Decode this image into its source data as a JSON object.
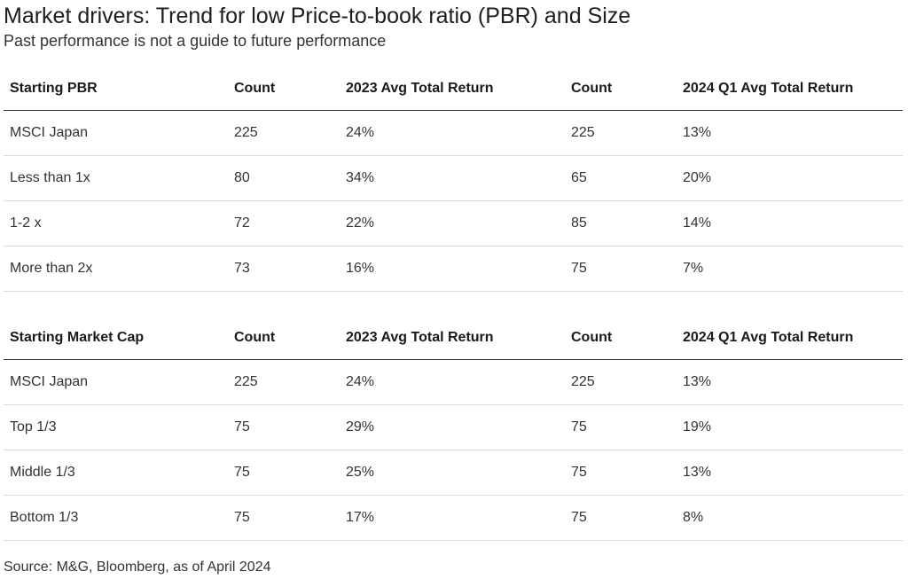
{
  "title": "Market drivers: Trend for low Price-to-book ratio (PBR) and Size",
  "subtitle": "Past performance is not a guide to future performance",
  "source": "Source: M&G, Bloomberg, as of April 2024",
  "chart_data": [
    {
      "type": "table",
      "columns": [
        "Starting PBR",
        "Count",
        "2023 Avg Total Return",
        "Count",
        "2024 Q1 Avg Total Return"
      ],
      "rows": [
        [
          "MSCI Japan",
          "225",
          "24%",
          "225",
          "13%"
        ],
        [
          "Less than 1x",
          "80",
          "34%",
          "65",
          "20%"
        ],
        [
          "1-2 x",
          "72",
          "22%",
          "85",
          "14%"
        ],
        [
          "More than 2x",
          "73",
          "16%",
          "75",
          "7%"
        ]
      ]
    },
    {
      "type": "table",
      "columns": [
        "Starting Market Cap",
        "Count",
        "2023 Avg Total Return",
        "Count",
        "2024 Q1 Avg Total Return"
      ],
      "rows": [
        [
          "MSCI Japan",
          "225",
          "24%",
          "225",
          "13%"
        ],
        [
          "Top 1/3",
          "75",
          "29%",
          "75",
          "19%"
        ],
        [
          "Middle 1/3",
          "75",
          "25%",
          "75",
          "13%"
        ],
        [
          "Bottom 1/3",
          "75",
          "17%",
          "75",
          "8%"
        ]
      ]
    }
  ]
}
